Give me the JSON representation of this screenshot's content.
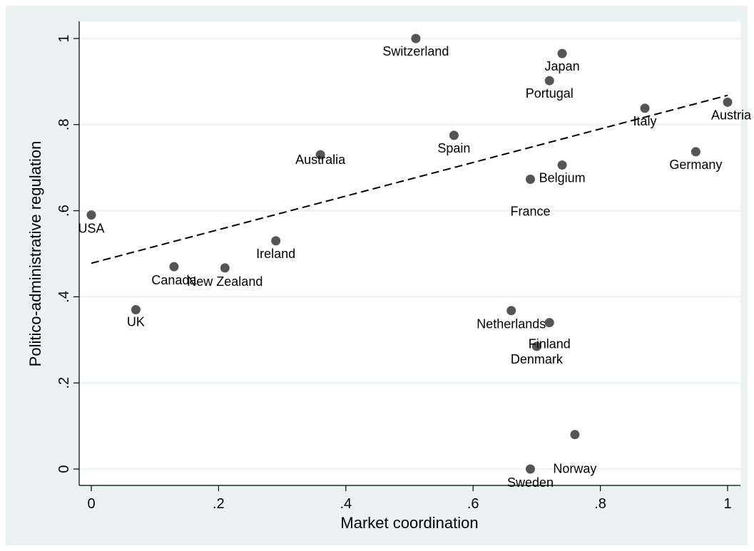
{
  "chart_data": {
    "type": "scatter",
    "xlabel": "Market coordination",
    "ylabel": "Politico-administrative regulation",
    "xlim": [
      0,
      1
    ],
    "ylim": [
      0,
      1
    ],
    "x_ticks": [
      0,
      0.2,
      0.4,
      0.6,
      0.8,
      1
    ],
    "x_tick_labels": [
      "0",
      ".2",
      ".4",
      ".6",
      ".8",
      "1"
    ],
    "y_ticks": [
      0,
      0.2,
      0.4,
      0.6,
      0.8,
      1
    ],
    "y_tick_labels": [
      "0",
      ".2",
      ".4",
      ".6",
      ".8",
      "1"
    ],
    "grid": "horizontal",
    "points": [
      {
        "label": "USA",
        "x": 0.0,
        "y": 0.59
      },
      {
        "label": "UK",
        "x": 0.07,
        "y": 0.37
      },
      {
        "label": "Canada",
        "x": 0.13,
        "y": 0.47
      },
      {
        "label": "New Zealand",
        "x": 0.21,
        "y": 0.467
      },
      {
        "label": "Ireland",
        "x": 0.29,
        "y": 0.53
      },
      {
        "label": "Australia",
        "x": 0.36,
        "y": 0.73
      },
      {
        "label": "Switzerland",
        "x": 0.51,
        "y": 1.0
      },
      {
        "label": "Spain",
        "x": 0.57,
        "y": 0.775
      },
      {
        "label": "Netherlands",
        "x": 0.66,
        "y": 0.368
      },
      {
        "label": "France",
        "x": 0.69,
        "y": 0.673
      },
      {
        "label": "Sweden",
        "x": 0.69,
        "y": 0.0
      },
      {
        "label": "Denmark",
        "x": 0.7,
        "y": 0.285
      },
      {
        "label": "Portugal",
        "x": 0.72,
        "y": 0.902
      },
      {
        "label": "Finland",
        "x": 0.72,
        "y": 0.34
      },
      {
        "label": "Japan",
        "x": 0.74,
        "y": 0.965
      },
      {
        "label": "Belgium",
        "x": 0.74,
        "y": 0.706
      },
      {
        "label": "Norway",
        "x": 0.76,
        "y": 0.08
      },
      {
        "label": "Italy",
        "x": 0.87,
        "y": 0.838
      },
      {
        "label": "Germany",
        "x": 0.95,
        "y": 0.737
      },
      {
        "label": "Austria",
        "x": 1.0,
        "y": 0.852
      }
    ],
    "fit_line": {
      "style": "dashed",
      "x": [
        0,
        1
      ],
      "y": [
        0.478,
        0.868
      ]
    },
    "marker_color": "#555555",
    "background_color": "#eaf2f3",
    "grid_color": "#eaf2f3"
  }
}
